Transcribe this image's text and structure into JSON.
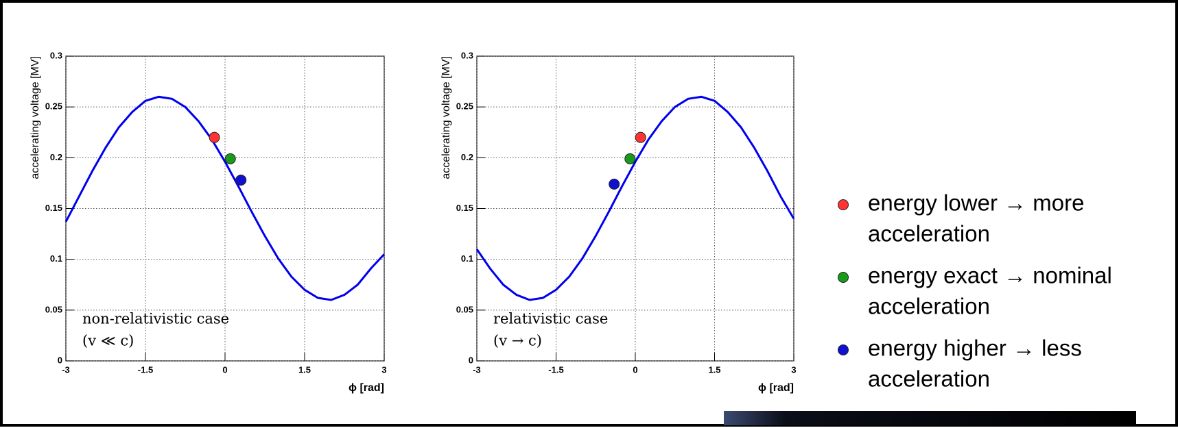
{
  "chart_data": [
    {
      "type": "line",
      "xlabel": "ϕ [rad]",
      "ylabel": "accelerating voltage [MV]",
      "xlim": [
        -3,
        3
      ],
      "xticks": [
        -3,
        -1.5,
        0,
        1.5,
        3
      ],
      "ylim": [
        0,
        0.3
      ],
      "yticks": [
        0,
        0.05,
        0.1,
        0.15,
        0.2,
        0.25,
        0.3
      ],
      "grid": true,
      "annotations": [
        "non-relativistic case",
        "(v ≪ c)"
      ],
      "x": [
        -3,
        -2.75,
        -2.5,
        -2.25,
        -2,
        -1.75,
        -1.5,
        -1.25,
        -1,
        -0.75,
        -0.5,
        -0.25,
        0,
        0.25,
        0.5,
        0.75,
        1,
        1.25,
        1.5,
        1.75,
        2,
        2.25,
        2.5,
        2.75,
        3
      ],
      "series": [
        {
          "color": "#0000ee",
          "values": [
            0.137,
            0.162,
            0.187,
            0.21,
            0.23,
            0.245,
            0.256,
            0.26,
            0.258,
            0.25,
            0.236,
            0.218,
            0.196,
            0.172,
            0.147,
            0.123,
            0.101,
            0.083,
            0.07,
            0.062,
            0.06,
            0.065,
            0.075,
            0.091,
            0.105
          ]
        }
      ],
      "points": [
        {
          "color": "#ff3333",
          "x": -0.2,
          "y": 0.22
        },
        {
          "color": "#1a9a1a",
          "x": 0.1,
          "y": 0.199
        },
        {
          "color": "#1010d0",
          "x": 0.3,
          "y": 0.178
        }
      ]
    },
    {
      "type": "line",
      "xlabel": "ϕ [rad]",
      "ylabel": "accelerating voltage [MV]",
      "xlim": [
        -3,
        3
      ],
      "xticks": [
        -3,
        -1.5,
        0,
        1.5,
        3
      ],
      "ylim": [
        0,
        0.3
      ],
      "yticks": [
        0,
        0.05,
        0.1,
        0.15,
        0.2,
        0.25,
        0.3
      ],
      "grid": true,
      "annotations": [
        "relativistic case",
        "(v → c)"
      ],
      "x": [
        -3,
        -2.75,
        -2.5,
        -2.25,
        -2,
        -1.75,
        -1.5,
        -1.25,
        -1,
        -0.75,
        -0.5,
        -0.25,
        0,
        0.25,
        0.5,
        0.75,
        1,
        1.25,
        1.5,
        1.75,
        2,
        2.25,
        2.5,
        2.75,
        3
      ],
      "series": [
        {
          "color": "#0000ee",
          "values": [
            0.11,
            0.091,
            0.075,
            0.065,
            0.06,
            0.062,
            0.07,
            0.083,
            0.101,
            0.123,
            0.147,
            0.172,
            0.196,
            0.218,
            0.236,
            0.25,
            0.258,
            0.26,
            0.256,
            0.245,
            0.23,
            0.21,
            0.187,
            0.162,
            0.14
          ]
        }
      ],
      "points": [
        {
          "color": "#1010d0",
          "x": -0.4,
          "y": 0.174
        },
        {
          "color": "#1a9a1a",
          "x": -0.1,
          "y": 0.199
        },
        {
          "color": "#ff3333",
          "x": 0.1,
          "y": 0.22
        }
      ]
    }
  ],
  "legend": {
    "items": [
      {
        "color": "#ff3333",
        "lines": [
          "energy lower  → more",
          "acceleration"
        ]
      },
      {
        "color": "#1a9a1a",
        "lines": [
          "energy exact  → nominal",
          "acceleration"
        ]
      },
      {
        "color": "#1010d0",
        "lines": [
          "energy higher → less",
          "acceleration"
        ]
      }
    ]
  }
}
